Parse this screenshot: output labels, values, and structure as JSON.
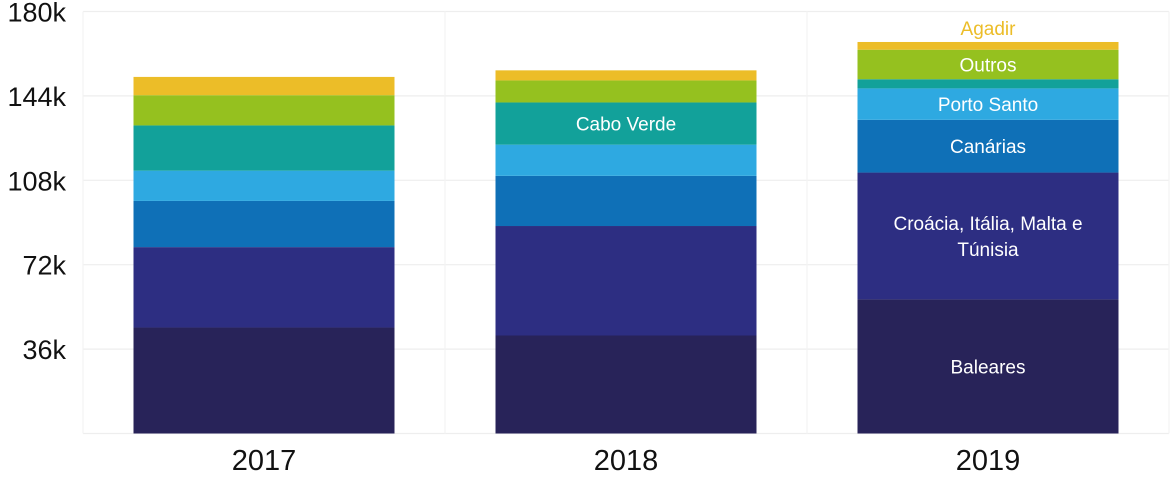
{
  "chart_data": {
    "type": "bar",
    "stacked": true,
    "title": "",
    "xlabel": "",
    "ylabel": "",
    "ylim": [
      0,
      180000
    ],
    "yticks": [
      36000,
      72000,
      108000,
      144000,
      180000
    ],
    "ytick_labels": [
      "36k",
      "72k",
      "108k",
      "144k",
      "180k"
    ],
    "grid": true,
    "categories": [
      "2017",
      "2018",
      "2019"
    ],
    "series": [
      {
        "name": "Baleares",
        "color": "#282359",
        "values": [
          45200,
          41800,
          57200
        ],
        "label_on": [
          false,
          false,
          true
        ]
      },
      {
        "name": "Croácia, Itália, Malta e Túnisia",
        "label_lines": [
          "Croácia, Itália, Malta e",
          "Túnisia"
        ],
        "color": "#2d2e82",
        "values": [
          34300,
          46700,
          54100
        ],
        "label_on": [
          false,
          false,
          true
        ]
      },
      {
        "name": "Canárias",
        "color": "#0f70b7",
        "values": [
          19700,
          21400,
          22500
        ],
        "label_on": [
          false,
          false,
          true
        ]
      },
      {
        "name": "Porto Santo",
        "color": "#2ea9e1",
        "values": [
          12900,
          13300,
          13400
        ],
        "label_on": [
          false,
          false,
          true
        ]
      },
      {
        "name": "Cabo Verde",
        "color": "#12a19a",
        "values": [
          19300,
          18000,
          3900
        ],
        "label_on": [
          false,
          true,
          false
        ]
      },
      {
        "name": "Outros",
        "color": "#95c11f",
        "values": [
          12900,
          9400,
          12600
        ],
        "label_on": [
          false,
          false,
          true
        ]
      },
      {
        "name": "Agadir",
        "color": "#ecbd28",
        "values": [
          7800,
          4300,
          3300
        ],
        "label_on": [
          false,
          false,
          true
        ],
        "label_outside": true
      }
    ]
  }
}
